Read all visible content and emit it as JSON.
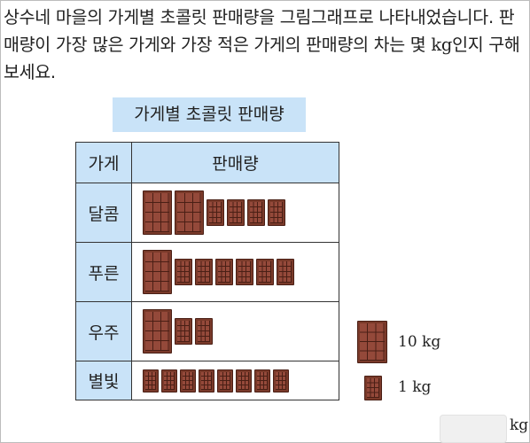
{
  "question": {
    "text_before_unit": "상수네 마을의 가게별 초콜릿 판매량을 그림그래프로 나타내었습니다. 판매량이 가장 많은 가게와 가장 적은 가게의 판매량의 차는 몇 ",
    "unit": "kg",
    "text_after_unit": "인지 구해 보세요."
  },
  "graph": {
    "title": "가게별 초콜릿 판매량",
    "header_store": "가게",
    "header_sales": "판매량",
    "rows": [
      {
        "store": "달콤",
        "big_icons": 2,
        "small_icons": 4
      },
      {
        "store": "푸른",
        "big_icons": 1,
        "small_icons": 6
      },
      {
        "store": "우주",
        "big_icons": 1,
        "small_icons": 2
      },
      {
        "store": "별빛",
        "big_icons": 0,
        "small_icons": 8
      }
    ]
  },
  "legend": {
    "big_label": "10 kg",
    "small_label": "1 kg",
    "big_icon": "chocolate-bar-icon",
    "small_icon": "chocolate-bar-icon"
  },
  "answer": {
    "value": "",
    "unit": "kg"
  },
  "colors": {
    "header_fill": "#c9e3f8",
    "chocolate": "#94493a"
  }
}
